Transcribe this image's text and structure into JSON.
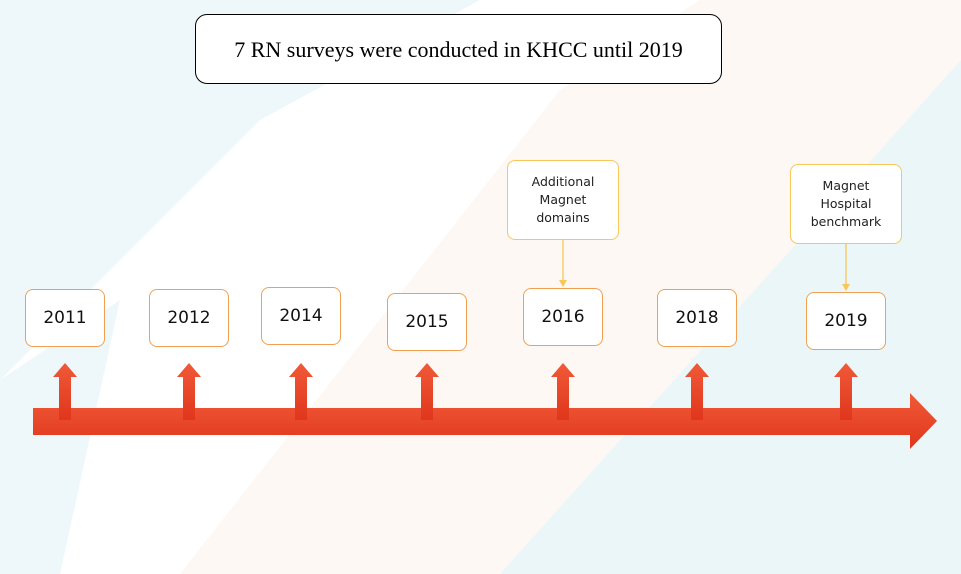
{
  "title": "7 RN surveys were conducted in KHCC until 2019",
  "years": [
    {
      "label": "2011"
    },
    {
      "label": "2012"
    },
    {
      "label": "2014"
    },
    {
      "label": "2015"
    },
    {
      "label": "2016",
      "note": "Additional Magnet domains"
    },
    {
      "label": "2018"
    },
    {
      "label": "2019",
      "note": "Magnet Hospital benchmark"
    }
  ]
}
